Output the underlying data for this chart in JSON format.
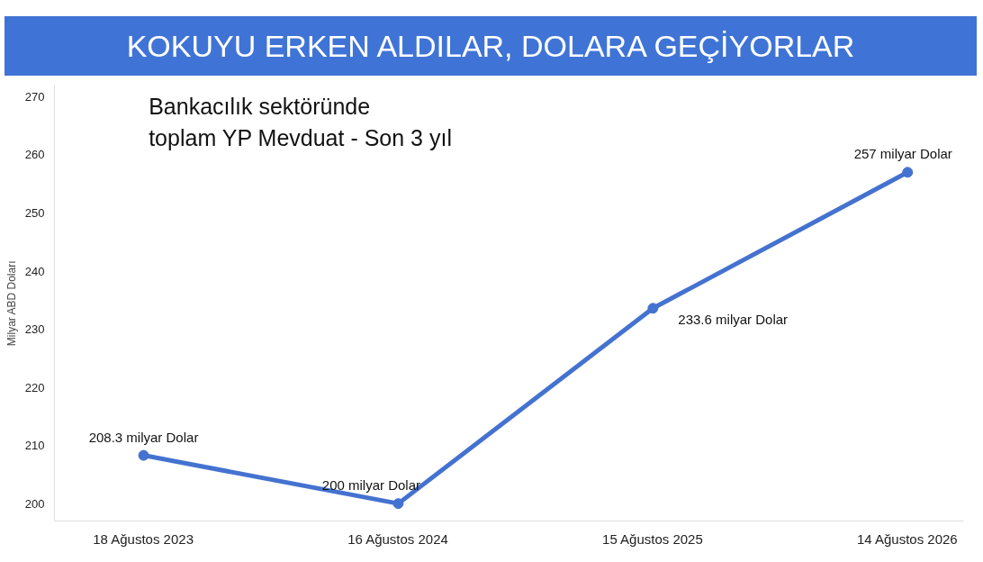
{
  "chart_data": {
    "type": "line",
    "title": "KOKUYU ERKEN ALDILAR, DOLARA GEÇİYORLAR",
    "subtitle": "Bankacılık sektöründe\ntoplam YP Mevduat - Son 3 yıl",
    "ylabel": "Milyar ABD Doları",
    "categories": [
      "18 Ağustos 2023",
      "16 Ağustos 2024",
      "15 Ağustos 2025",
      "14 Ağustos 2026"
    ],
    "series": [
      {
        "color": "#4472d0",
        "values": [
          208.3,
          200,
          233.6,
          257
        ],
        "value_labels": [
          "208.3 milyar Dolar",
          "200 milyar Dolar",
          "233.6 milyar Dolar",
          "257 milyar Dolar"
        ]
      }
    ],
    "ylim": [
      197,
      272
    ],
    "yticks": [
      200,
      210,
      220,
      230,
      240,
      250,
      260,
      270
    ],
    "grid": false,
    "marker": "circle",
    "line_style": "solid"
  }
}
